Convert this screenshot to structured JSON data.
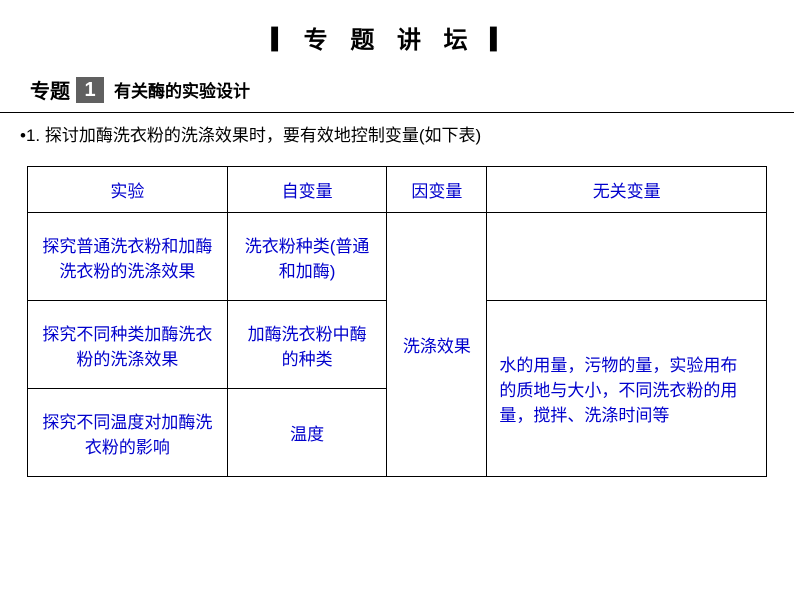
{
  "page": {
    "title": "▎专 题  讲 坛 ▎"
  },
  "section": {
    "topic_label": "专题",
    "topic_number": "1",
    "topic_title": "有关酶的实验设计"
  },
  "intro": "•1.  探讨加酶洗衣粉的洗涤效果时，要有效地控制变量(如下表)",
  "table": {
    "headers": {
      "experiment": "实验",
      "independent_var": "自变量",
      "dependent_var": "因变量",
      "confounding_var": "无关变量"
    },
    "rows": {
      "r1": {
        "experiment": "探究普通洗衣粉和加酶洗衣粉的洗涤效果",
        "independent_var": "洗衣粉种类(普通和加酶)"
      },
      "r2": {
        "experiment": "探究不同种类加酶洗衣粉的洗涤效果",
        "independent_var": "加酶洗衣粉中酶的种类"
      },
      "r3": {
        "experiment": "探究不同温度对加酶洗衣粉的影响",
        "independent_var": "温度"
      }
    },
    "dependent_var_merged": "洗涤效果",
    "confounding_top": "",
    "confounding_merged": "水的用量，污物的量，实验用布的质地与大小，不同洗衣粉的用量，搅拌、洗涤时间等"
  },
  "colors": {
    "text_primary": "#000000",
    "text_table": "#0000cc",
    "number_box_bg": "#606060",
    "number_box_fg": "#ffffff",
    "border": "#000000",
    "background": "#ffffff"
  },
  "typography": {
    "title_fontsize": 24,
    "section_fontsize": 20,
    "body_fontsize": 17
  }
}
